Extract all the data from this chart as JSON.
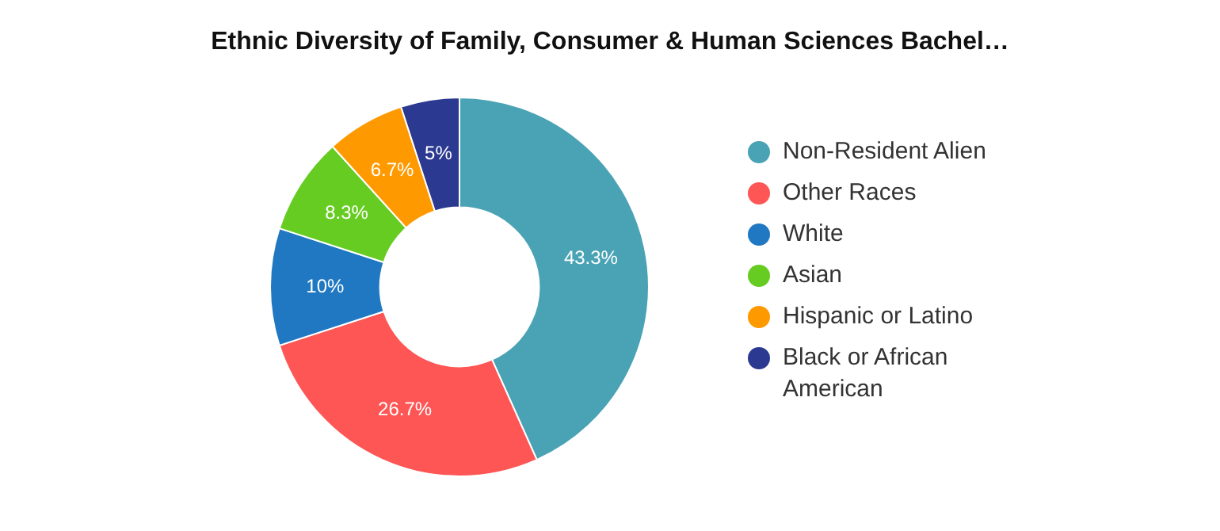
{
  "chart_data": {
    "type": "donut",
    "title": "Ethnic Diversity of Family, Consumer & Human Sciences Bachel…",
    "categories": [
      "Non-Resident Alien",
      "Other Races",
      "White",
      "Asian",
      "Hispanic or Latino",
      "Black or African American"
    ],
    "values": [
      43.3,
      26.7,
      10,
      8.3,
      6.7,
      5
    ],
    "colors": [
      "#4aa3b5",
      "#fe5555",
      "#1f78c1",
      "#66cc22",
      "#ff9900",
      "#2b3990"
    ],
    "value_labels": [
      "43.3%",
      "26.7%",
      "10%",
      "8.3%",
      "6.7%",
      "5%"
    ],
    "legend": "right"
  }
}
